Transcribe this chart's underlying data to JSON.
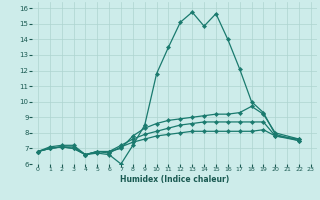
{
  "xlabel": "Humidex (Indice chaleur)",
  "xlim": [
    -0.5,
    23.5
  ],
  "ylim": [
    6,
    16.4
  ],
  "yticks": [
    6,
    7,
    8,
    9,
    10,
    11,
    12,
    13,
    14,
    15,
    16
  ],
  "xticks": [
    0,
    1,
    2,
    3,
    4,
    5,
    6,
    7,
    8,
    9,
    10,
    11,
    12,
    13,
    14,
    15,
    16,
    17,
    18,
    19,
    20,
    21,
    22,
    23
  ],
  "background_color": "#cdecea",
  "grid_color": "#aed4d0",
  "line_color": "#1a7a6e",
  "series": [
    {
      "x": [
        0,
        1,
        2,
        3,
        4,
        5,
        6,
        7,
        8,
        9,
        10,
        11,
        12,
        13,
        14,
        15,
        16,
        17,
        18,
        19,
        20,
        22
      ],
      "y": [
        6.8,
        7.1,
        7.2,
        7.2,
        6.6,
        6.7,
        6.6,
        6.0,
        7.2,
        8.5,
        11.8,
        13.5,
        15.1,
        15.75,
        14.85,
        15.65,
        14.0,
        12.1,
        10.0,
        9.3,
        7.9,
        7.5
      ]
    },
    {
      "x": [
        0,
        1,
        2,
        3,
        4,
        5,
        6,
        7,
        8,
        9,
        10,
        11,
        12,
        13,
        14,
        15,
        16,
        17,
        18,
        19,
        20,
        22
      ],
      "y": [
        6.8,
        7.0,
        7.1,
        7.1,
        6.6,
        6.8,
        6.8,
        7.0,
        7.8,
        8.3,
        8.6,
        8.8,
        8.9,
        9.0,
        9.1,
        9.2,
        9.2,
        9.3,
        9.7,
        9.2,
        8.0,
        7.6
      ]
    },
    {
      "x": [
        0,
        1,
        2,
        3,
        4,
        5,
        6,
        7,
        8,
        9,
        10,
        11,
        12,
        13,
        14,
        15,
        16,
        17,
        18,
        19,
        20,
        22
      ],
      "y": [
        6.8,
        7.0,
        7.1,
        7.0,
        6.6,
        6.8,
        6.8,
        7.2,
        7.6,
        7.9,
        8.1,
        8.3,
        8.5,
        8.6,
        8.7,
        8.7,
        8.7,
        8.7,
        8.7,
        8.7,
        7.8,
        7.5
      ]
    },
    {
      "x": [
        0,
        1,
        2,
        3,
        4,
        5,
        6,
        7,
        8,
        9,
        10,
        11,
        12,
        13,
        14,
        15,
        16,
        17,
        18,
        19,
        20,
        22
      ],
      "y": [
        6.8,
        7.0,
        7.1,
        7.0,
        6.6,
        6.8,
        6.7,
        7.1,
        7.4,
        7.6,
        7.8,
        7.9,
        8.0,
        8.1,
        8.1,
        8.1,
        8.1,
        8.1,
        8.1,
        8.2,
        7.8,
        7.6
      ]
    }
  ]
}
